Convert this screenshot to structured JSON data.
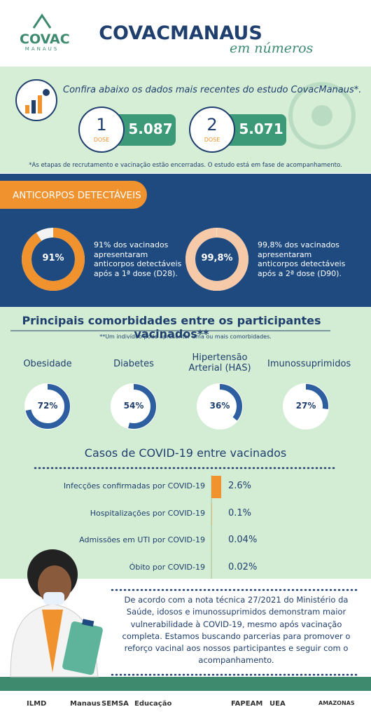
{
  "header": {
    "logo": "COVAC",
    "logo_sub": "MANAUS",
    "title": "COVACMANAUS",
    "subtitle": "em números"
  },
  "intro": {
    "text": "Confira abaixo os dados mais recentes do estudo CovacManaus*.",
    "doses": [
      {
        "number": "1",
        "label": "DOSE",
        "count": "5.087"
      },
      {
        "number": "2",
        "label": "DOSE",
        "count": "5.071"
      }
    ],
    "note": "*As etapas de recrutamento e vacinação estão encerradas. O estudo está em fase de acompanhamento."
  },
  "antibodies": {
    "type": "donut",
    "title": "ANTICORPOS DETECTÁVEIS",
    "values": [
      91,
      99.8
    ],
    "value_labels": [
      "91%",
      "99,8%"
    ],
    "descriptions": [
      "91% dos vacinados apresentaram anticorpos detectáveis após a 1ª dose (D28).",
      "99,8% dos vacinados apresentaram anticorpos detectáveis após a 2ª dose (D90)."
    ],
    "colors": [
      "#f0922e",
      "#f6c9a8"
    ]
  },
  "comorbidities": {
    "type": "donut",
    "title": "Principais comorbidades entre os participantes vacinados**",
    "note": "**Um indivíduo pode apresentar uma ou mais comorbidades.",
    "categories": [
      "Obesidade",
      "Diabetes",
      "Hipertensão Arterial (HAS)",
      "Imunossuprimidos"
    ],
    "values": [
      72,
      54,
      36,
      27
    ],
    "value_labels": [
      "72%",
      "54%",
      "36%",
      "27%"
    ],
    "color": "#2d5fa0"
  },
  "cases": {
    "type": "bar",
    "title": "Casos de COVID-19 entre vacinados",
    "categories": [
      "Infecções confirmadas por COVID-19",
      "Hospitalizações por COVID-19",
      "Admissões em UTI por COVID-19",
      "Óbito por COVID-19"
    ],
    "values": [
      2.6,
      0.1,
      0.04,
      0.02
    ],
    "value_labels": [
      "2.6%",
      "0.1%",
      "0.04%",
      "0.02%"
    ],
    "color": "#f0922e"
  },
  "footer": {
    "text": "De acordo com a nota técnica 27/2021 do Ministério da Saúde, idosos e imunossuprimidos demonstram maior vulnerabilidade à COVID-19, mesmo após vacinação completa. Estamos buscando parcerias para promover o reforço vacinal aos nossos participantes e seguir com o acompanhamento.",
    "logos": [
      "ILMD",
      "Manaus",
      "SEMSA",
      "Educação",
      "FAPEAM",
      "UEA",
      "AMAZONAS"
    ]
  }
}
